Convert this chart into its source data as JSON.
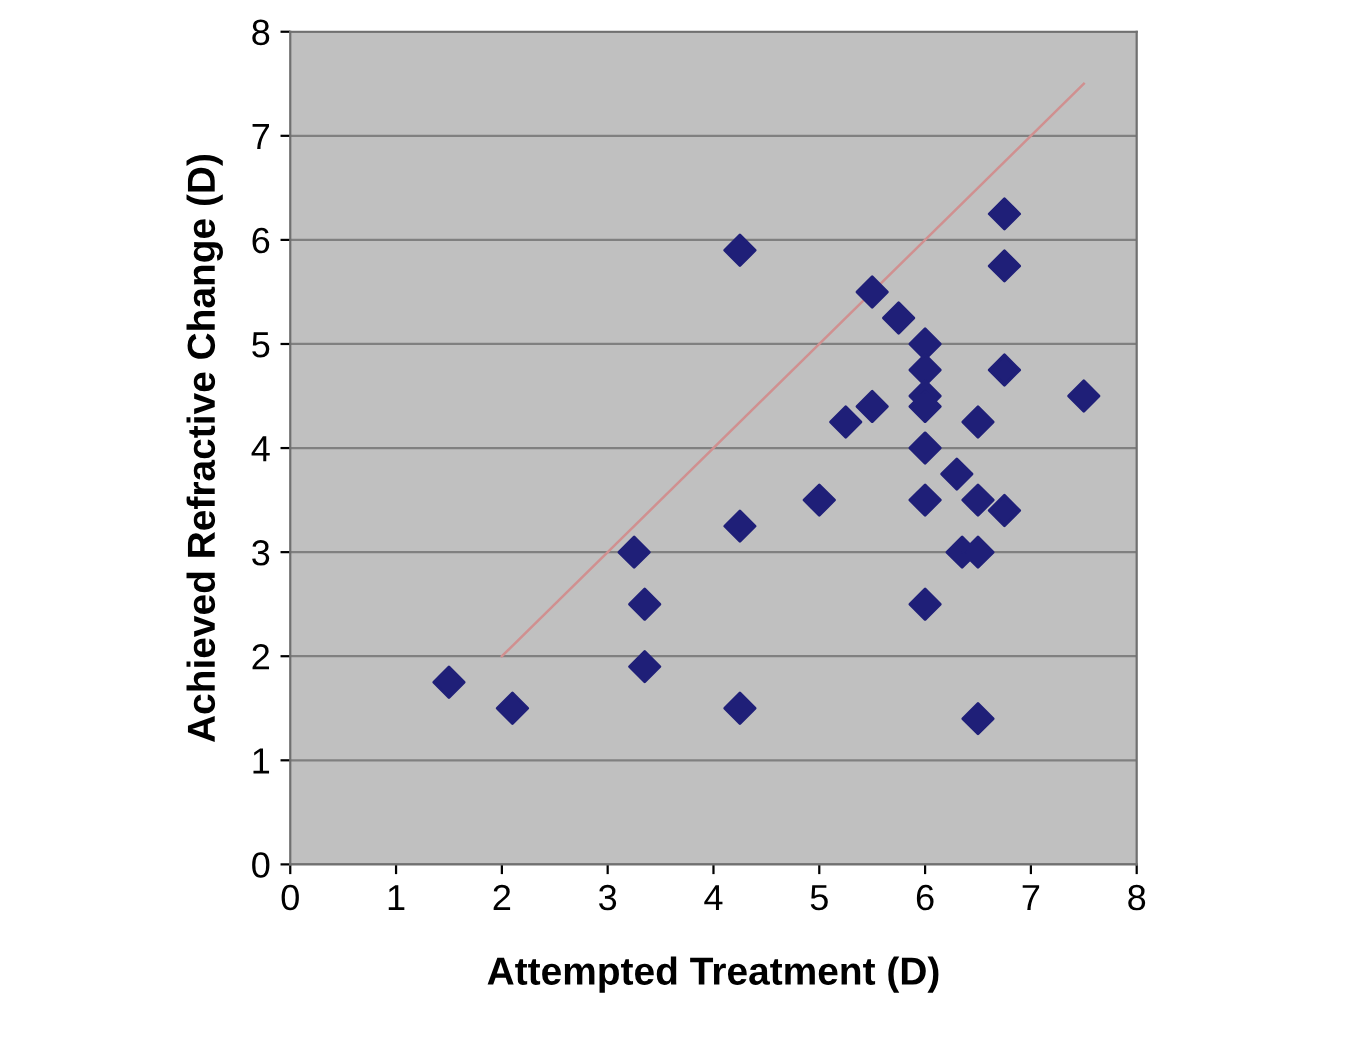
{
  "chart_data": {
    "type": "scatter",
    "xlabel": "Attempted Treatment (D)",
    "ylabel": "Achieved Refractive Change (D)",
    "xlim": [
      0,
      8
    ],
    "ylim": [
      0,
      8
    ],
    "xticks": [
      0,
      1,
      2,
      3,
      4,
      5,
      6,
      7,
      8
    ],
    "yticks": [
      0,
      1,
      2,
      3,
      4,
      5,
      6,
      7,
      8
    ],
    "grid": "y",
    "series": [
      {
        "color": "#1f1f78",
        "marker": "diamond",
        "x": [
          1.5,
          2.1,
          3.25,
          3.35,
          3.35,
          4.25,
          4.25,
          4.25,
          5.0,
          5.25,
          5.5,
          5.5,
          5.75,
          6,
          6,
          6,
          6,
          6,
          6,
          6,
          6.3,
          6.35,
          6.5,
          6.5,
          6.5,
          6.5,
          6.75,
          6.75,
          6.75,
          6.75,
          7.5
        ],
        "values": [
          1.75,
          1.5,
          3.0,
          2.5,
          1.9,
          5.9,
          3.25,
          1.5,
          3.5,
          4.25,
          4.4,
          5.5,
          5.25,
          5.0,
          4.75,
          4.5,
          4.4,
          4.0,
          3.5,
          2.5,
          3.75,
          3.0,
          3.0,
          3.5,
          4.25,
          1.4,
          6.25,
          5.75,
          4.75,
          3.4,
          4.5
        ]
      },
      {
        "type": "line",
        "color": "#d09090",
        "marker": "none",
        "x": [
          2.0,
          7.5
        ],
        "values": [
          2.0,
          7.5
        ]
      }
    ]
  }
}
